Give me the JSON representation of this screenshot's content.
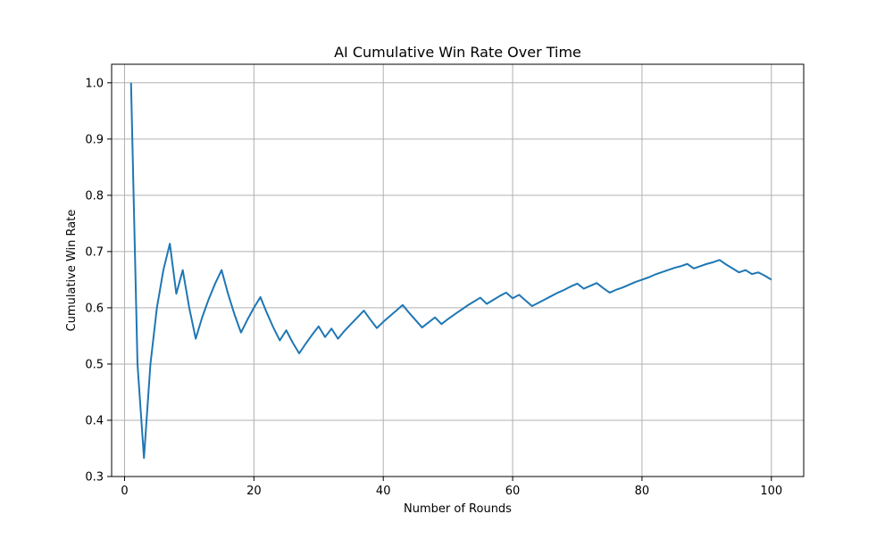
{
  "chart_data": {
    "type": "line",
    "title": "AI Cumulative Win Rate Over Time",
    "xlabel": "Number of Rounds",
    "ylabel": "Cumulative Win Rate",
    "xlim": [
      -2,
      105
    ],
    "ylim": [
      0.3,
      1.033
    ],
    "xticks": [
      0,
      20,
      40,
      60,
      80,
      100
    ],
    "xtick_labels": [
      "0",
      "20",
      "40",
      "60",
      "80",
      "100"
    ],
    "yticks": [
      0.3,
      0.4,
      0.5,
      0.6,
      0.7,
      0.8,
      0.9,
      1.0
    ],
    "ytick_labels": [
      "0.3",
      "0.4",
      "0.5",
      "0.6",
      "0.7",
      "0.8",
      "0.9",
      "1.0"
    ],
    "grid": true,
    "line_color": "#1f77b4",
    "x": [
      1,
      2,
      3,
      4,
      5,
      6,
      7,
      8,
      9,
      10,
      11,
      12,
      13,
      14,
      15,
      16,
      17,
      18,
      19,
      20,
      21,
      22,
      23,
      24,
      25,
      26,
      27,
      28,
      29,
      30,
      31,
      32,
      33,
      34,
      35,
      36,
      37,
      38,
      39,
      40,
      41,
      42,
      43,
      44,
      45,
      46,
      47,
      48,
      49,
      50,
      51,
      52,
      53,
      54,
      55,
      56,
      57,
      58,
      59,
      60,
      61,
      62,
      63,
      64,
      65,
      66,
      67,
      68,
      69,
      70,
      71,
      72,
      73,
      74,
      75,
      76,
      77,
      78,
      79,
      80,
      81,
      82,
      83,
      84,
      85,
      86,
      87,
      88,
      89,
      90,
      91,
      92,
      93,
      94,
      95,
      96,
      97,
      98,
      99,
      100
    ],
    "y": [
      1.0,
      0.5,
      0.333,
      0.5,
      0.6,
      0.667,
      0.714,
      0.625,
      0.667,
      0.6,
      0.545,
      0.583,
      0.615,
      0.643,
      0.667,
      0.625,
      0.588,
      0.556,
      0.579,
      0.6,
      0.619,
      0.591,
      0.565,
      0.542,
      0.56,
      0.538,
      0.519,
      0.536,
      0.552,
      0.567,
      0.548,
      0.563,
      0.545,
      0.559,
      0.571,
      0.583,
      0.595,
      0.579,
      0.564,
      0.575,
      0.585,
      0.595,
      0.605,
      0.591,
      0.578,
      0.565,
      0.574,
      0.583,
      0.571,
      0.58,
      0.588,
      0.596,
      0.604,
      0.611,
      0.618,
      0.607,
      0.614,
      0.621,
      0.627,
      0.617,
      0.623,
      0.613,
      0.603,
      0.609,
      0.615,
      0.621,
      0.627,
      0.632,
      0.638,
      0.643,
      0.634,
      0.639,
      0.644,
      0.635,
      0.627,
      0.632,
      0.636,
      0.641,
      0.646,
      0.65,
      0.654,
      0.659,
      0.663,
      0.667,
      0.671,
      0.674,
      0.678,
      0.67,
      0.674,
      0.678,
      0.681,
      0.685,
      0.677,
      0.67,
      0.663,
      0.667,
      0.66,
      0.663,
      0.657,
      0.65
    ]
  }
}
